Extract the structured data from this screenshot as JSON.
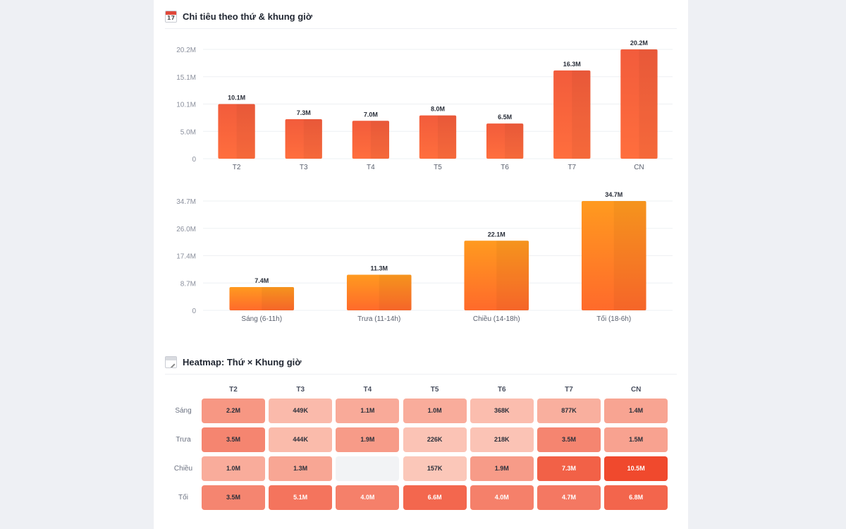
{
  "section1": {
    "title": "Chi tiêu theo thứ & khung giờ",
    "icon": "calendar-icon",
    "icon_text": "17"
  },
  "section2": {
    "title": "Heatmap: Thứ × Khung giờ",
    "icon": "calendar-edit-icon"
  },
  "colors": {
    "bar_red_top": "#f25c3c",
    "bar_red_bottom": "#ff6e3d",
    "bar_orange_top": "#ff9a1f",
    "bar_orange_bottom": "#ff6a2b",
    "heat_max": "#f0492d",
    "heat_min": "#fdd8cc",
    "heat_empty": "#f2f3f5"
  },
  "chart_data": [
    {
      "type": "bar",
      "title": "",
      "categories": [
        "T2",
        "T3",
        "T4",
        "T5",
        "T6",
        "T7",
        "CN"
      ],
      "values": [
        10.1,
        7.3,
        7.0,
        8.0,
        6.5,
        16.3,
        20.2
      ],
      "value_labels": [
        "10.1M",
        "7.3M",
        "7.0M",
        "8.0M",
        "6.5M",
        "16.3M",
        "20.2M"
      ],
      "yticks": [
        "0",
        "5.0M",
        "10.1M",
        "15.1M",
        "20.2M"
      ],
      "ytick_values": [
        0,
        5.05,
        10.1,
        15.15,
        20.2
      ],
      "ylim": [
        0,
        20.2
      ],
      "unit": "M",
      "grid": true
    },
    {
      "type": "bar",
      "title": "",
      "categories": [
        "Sáng (6-11h)",
        "Trưa (11-14h)",
        "Chiều (14-18h)",
        "Tối (18-6h)"
      ],
      "values": [
        7.4,
        11.3,
        22.1,
        34.7
      ],
      "value_labels": [
        "7.4M",
        "11.3M",
        "22.1M",
        "34.7M"
      ],
      "yticks": [
        "0",
        "8.7M",
        "17.4M",
        "26.0M",
        "34.7M"
      ],
      "ytick_values": [
        0,
        8.675,
        17.35,
        26.025,
        34.7
      ],
      "ylim": [
        0,
        34.7
      ],
      "unit": "M",
      "grid": true
    },
    {
      "type": "heatmap",
      "columns": [
        "T2",
        "T3",
        "T4",
        "T5",
        "T6",
        "T7",
        "CN"
      ],
      "rows": [
        "Sáng",
        "Trưa",
        "Chiều",
        "Tối"
      ],
      "cells": [
        [
          "2.2M",
          "449K",
          "1.1M",
          "1.0M",
          "368K",
          "877K",
          "1.4M"
        ],
        [
          "3.5M",
          "444K",
          "1.9M",
          "226K",
          "218K",
          "3.5M",
          "1.5M"
        ],
        [
          "1.0M",
          "1.3M",
          "",
          "157K",
          "1.9M",
          "7.3M",
          "10.5M"
        ],
        [
          "3.5M",
          "5.1M",
          "4.0M",
          "6.6M",
          "4.0M",
          "4.7M",
          "6.8M"
        ]
      ],
      "values": [
        [
          2.2,
          0.449,
          1.1,
          1.0,
          0.368,
          0.877,
          1.4
        ],
        [
          3.5,
          0.444,
          1.9,
          0.226,
          0.218,
          3.5,
          1.5
        ],
        [
          1.0,
          1.3,
          null,
          0.157,
          1.9,
          7.3,
          10.5
        ],
        [
          3.5,
          5.1,
          4.0,
          6.6,
          4.0,
          4.7,
          6.8
        ]
      ],
      "unit": "M"
    }
  ]
}
